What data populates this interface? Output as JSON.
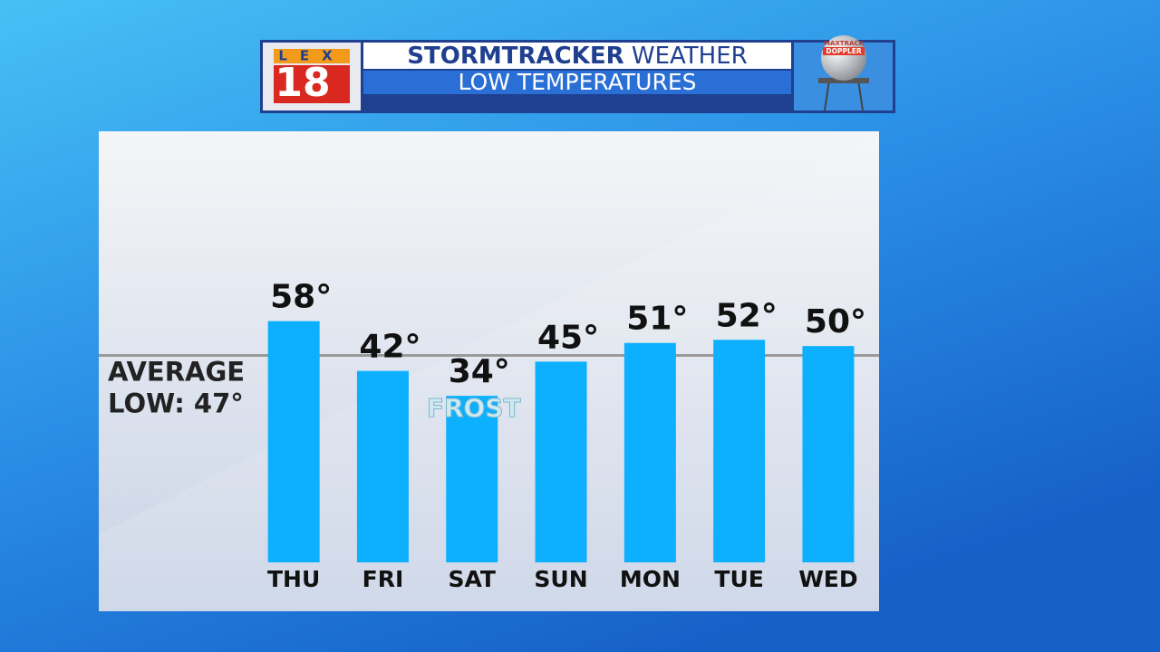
{
  "header": {
    "logo_text": "LEX",
    "logo_number": "18",
    "title_bold": "STORMTRACKER",
    "title_regular": "WEATHER",
    "subtitle": "LOW TEMPERATURES",
    "radar_text_1": "MAXTRACK",
    "radar_text_2": "DOPPLER"
  },
  "chart_data": {
    "type": "bar",
    "categories": [
      "THU",
      "FRI",
      "SAT",
      "SUN",
      "MON",
      "TUE",
      "WED"
    ],
    "values": [
      58,
      42,
      34,
      45,
      51,
      52,
      50
    ],
    "value_labels": [
      "58°",
      "42°",
      "34°",
      "45°",
      "51°",
      "52°",
      "50°"
    ],
    "color": "#0cb0ff",
    "ylim": [
      -19.5,
      119
    ],
    "reference_line": {
      "value": 47,
      "label": [
        "AVERAGE",
        "LOW: 47°"
      ],
      "color": "#9a9a9a"
    },
    "annotation": {
      "text": "FROST",
      "category": 2
    }
  }
}
